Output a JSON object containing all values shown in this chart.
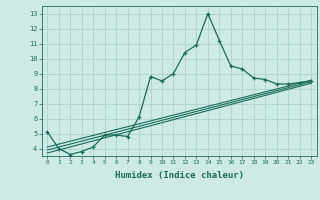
{
  "xlabel": "Humidex (Indice chaleur)",
  "bg_color": "#cdeae4",
  "grid_color": "#aad4cc",
  "line_color": "#1a6b5a",
  "xlim": [
    -0.5,
    23.5
  ],
  "ylim": [
    3.5,
    13.5
  ],
  "xticks": [
    0,
    1,
    2,
    3,
    4,
    5,
    6,
    7,
    8,
    9,
    10,
    11,
    12,
    13,
    14,
    15,
    16,
    17,
    18,
    19,
    20,
    21,
    22,
    23
  ],
  "yticks": [
    4,
    5,
    6,
    7,
    8,
    9,
    10,
    11,
    12,
    13
  ],
  "main_x": [
    0,
    1,
    2,
    3,
    4,
    5,
    6,
    7,
    8,
    9,
    10,
    11,
    12,
    13,
    14,
    15,
    16,
    17,
    18,
    19,
    20,
    21,
    22,
    23
  ],
  "main_y": [
    5.1,
    4.0,
    3.6,
    3.8,
    4.1,
    4.9,
    4.9,
    4.8,
    6.1,
    8.8,
    8.5,
    9.0,
    10.4,
    10.9,
    13.0,
    11.2,
    9.5,
    9.3,
    8.7,
    8.6,
    8.3,
    8.3,
    8.4,
    8.5
  ],
  "line2_x": [
    0,
    23
  ],
  "line2_y": [
    3.9,
    8.45
  ],
  "line3_x": [
    0,
    23
  ],
  "line3_y": [
    3.7,
    8.35
  ],
  "line4_x": [
    0,
    23
  ],
  "line4_y": [
    4.1,
    8.55
  ]
}
